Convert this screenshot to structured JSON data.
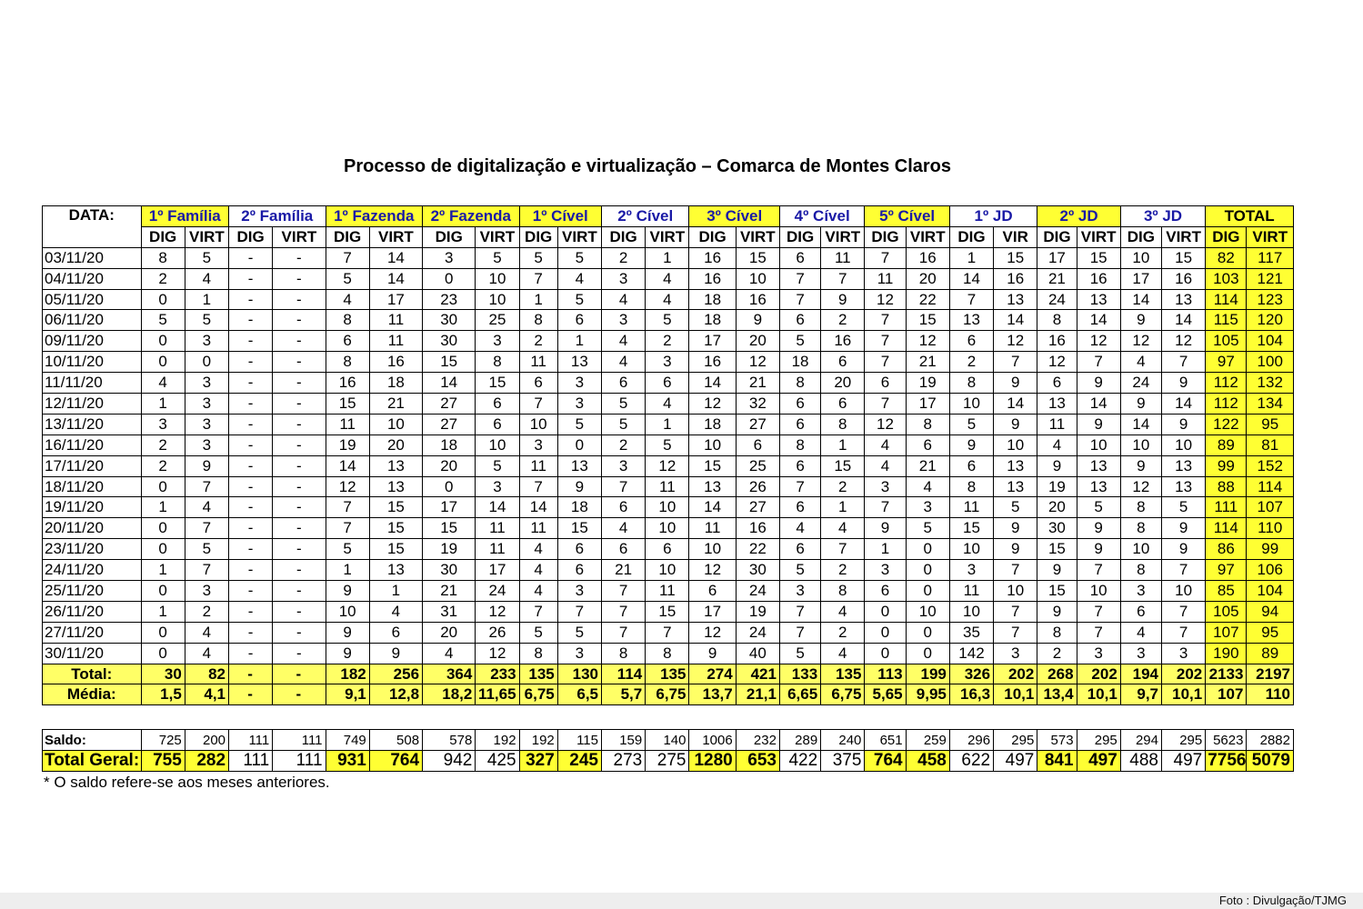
{
  "title": "Processo de digitalização e virtualização – Comarca de Montes Claros",
  "header": {
    "date_label": "DATA:",
    "groups": [
      "1º Família",
      "2º Família",
      "1º Fazenda",
      "2º Fazenda",
      "1º Cível",
      "2º Cível",
      "3º Cível",
      "4º Cível",
      "5º Cível",
      "1º JD",
      "2º JD",
      "3º JD",
      "TOTAL"
    ],
    "subheaders": [
      "DIG",
      "VIRT",
      "DIG",
      "VIRT",
      "DIG",
      "VIRT",
      "DIG",
      "VIRT",
      "DIG",
      "VIRT",
      "DIG",
      "VIRT",
      "DIG",
      "VIRT",
      "DIG",
      "VIRT",
      "DIG",
      "VIRT",
      "DIG",
      "VIR",
      "DIG",
      "VIRT",
      "DIG",
      "VIRT",
      "DIG",
      "VIRT"
    ]
  },
  "rows": [
    {
      "date": "03/11/20",
      "values": [
        "8",
        "5",
        "-",
        "-",
        "7",
        "14",
        "3",
        "5",
        "5",
        "5",
        "2",
        "1",
        "16",
        "15",
        "6",
        "11",
        "7",
        "16",
        "1",
        "15",
        "17",
        "15",
        "10",
        "15",
        "82",
        "117"
      ]
    },
    {
      "date": "04/11/20",
      "values": [
        "2",
        "4",
        "-",
        "-",
        "5",
        "14",
        "0",
        "10",
        "7",
        "4",
        "3",
        "4",
        "16",
        "10",
        "7",
        "7",
        "11",
        "20",
        "14",
        "16",
        "21",
        "16",
        "17",
        "16",
        "103",
        "121"
      ]
    },
    {
      "date": "05/11/20",
      "values": [
        "0",
        "1",
        "-",
        "-",
        "4",
        "17",
        "23",
        "10",
        "1",
        "5",
        "4",
        "4",
        "18",
        "16",
        "7",
        "9",
        "12",
        "22",
        "7",
        "13",
        "24",
        "13",
        "14",
        "13",
        "114",
        "123"
      ]
    },
    {
      "date": "06/11/20",
      "values": [
        "5",
        "5",
        "-",
        "-",
        "8",
        "11",
        "30",
        "25",
        "8",
        "6",
        "3",
        "5",
        "18",
        "9",
        "6",
        "2",
        "7",
        "15",
        "13",
        "14",
        "8",
        "14",
        "9",
        "14",
        "115",
        "120"
      ]
    },
    {
      "date": "09/11/20",
      "values": [
        "0",
        "3",
        "-",
        "-",
        "6",
        "11",
        "30",
        "3",
        "2",
        "1",
        "4",
        "2",
        "17",
        "20",
        "5",
        "16",
        "7",
        "12",
        "6",
        "12",
        "16",
        "12",
        "12",
        "12",
        "105",
        "104"
      ]
    },
    {
      "date": "10/11/20",
      "values": [
        "0",
        "0",
        "-",
        "-",
        "8",
        "16",
        "15",
        "8",
        "11",
        "13",
        "4",
        "3",
        "16",
        "12",
        "18",
        "6",
        "7",
        "21",
        "2",
        "7",
        "12",
        "7",
        "4",
        "7",
        "97",
        "100"
      ]
    },
    {
      "date": "11/11/20",
      "values": [
        "4",
        "3",
        "-",
        "-",
        "16",
        "18",
        "14",
        "15",
        "6",
        "3",
        "6",
        "6",
        "14",
        "21",
        "8",
        "20",
        "6",
        "19",
        "8",
        "9",
        "6",
        "9",
        "24",
        "9",
        "112",
        "132"
      ]
    },
    {
      "date": "12/11/20",
      "values": [
        "1",
        "3",
        "-",
        "-",
        "15",
        "21",
        "27",
        "6",
        "7",
        "3",
        "5",
        "4",
        "12",
        "32",
        "6",
        "6",
        "7",
        "17",
        "10",
        "14",
        "13",
        "14",
        "9",
        "14",
        "112",
        "134"
      ]
    },
    {
      "date": "13/11/20",
      "values": [
        "3",
        "3",
        "-",
        "-",
        "11",
        "10",
        "27",
        "6",
        "10",
        "5",
        "5",
        "1",
        "18",
        "27",
        "6",
        "8",
        "12",
        "8",
        "5",
        "9",
        "11",
        "9",
        "14",
        "9",
        "122",
        "95"
      ]
    },
    {
      "date": "16/11/20",
      "values": [
        "2",
        "3",
        "-",
        "-",
        "19",
        "20",
        "18",
        "10",
        "3",
        "0",
        "2",
        "5",
        "10",
        "6",
        "8",
        "1",
        "4",
        "6",
        "9",
        "10",
        "4",
        "10",
        "10",
        "10",
        "89",
        "81"
      ]
    },
    {
      "date": "17/11/20",
      "values": [
        "2",
        "9",
        "-",
        "-",
        "14",
        "13",
        "20",
        "5",
        "11",
        "13",
        "3",
        "12",
        "15",
        "25",
        "6",
        "15",
        "4",
        "21",
        "6",
        "13",
        "9",
        "13",
        "9",
        "13",
        "99",
        "152"
      ]
    },
    {
      "date": "18/11/20",
      "values": [
        "0",
        "7",
        "-",
        "-",
        "12",
        "13",
        "0",
        "3",
        "7",
        "9",
        "7",
        "11",
        "13",
        "26",
        "7",
        "2",
        "3",
        "4",
        "8",
        "13",
        "19",
        "13",
        "12",
        "13",
        "88",
        "114"
      ]
    },
    {
      "date": "19/11/20",
      "values": [
        "1",
        "4",
        "-",
        "-",
        "7",
        "15",
        "17",
        "14",
        "14",
        "18",
        "6",
        "10",
        "14",
        "27",
        "6",
        "1",
        "7",
        "3",
        "11",
        "5",
        "20",
        "5",
        "8",
        "5",
        "111",
        "107"
      ]
    },
    {
      "date": "20/11/20",
      "values": [
        "0",
        "7",
        "-",
        "-",
        "7",
        "15",
        "15",
        "11",
        "11",
        "15",
        "4",
        "10",
        "11",
        "16",
        "4",
        "4",
        "9",
        "5",
        "15",
        "9",
        "30",
        "9",
        "8",
        "9",
        "114",
        "110"
      ]
    },
    {
      "date": "23/11/20",
      "values": [
        "0",
        "5",
        "-",
        "-",
        "5",
        "15",
        "19",
        "11",
        "4",
        "6",
        "6",
        "6",
        "10",
        "22",
        "6",
        "7",
        "1",
        "0",
        "10",
        "9",
        "15",
        "9",
        "10",
        "9",
        "86",
        "99"
      ]
    },
    {
      "date": "24/11/20",
      "values": [
        "1",
        "7",
        "-",
        "-",
        "1",
        "13",
        "30",
        "17",
        "4",
        "6",
        "21",
        "10",
        "12",
        "30",
        "5",
        "2",
        "3",
        "0",
        "3",
        "7",
        "9",
        "7",
        "8",
        "7",
        "97",
        "106"
      ]
    },
    {
      "date": "25/11/20",
      "values": [
        "0",
        "3",
        "-",
        "-",
        "9",
        "1",
        "21",
        "24",
        "4",
        "3",
        "7",
        "11",
        "6",
        "24",
        "3",
        "8",
        "6",
        "0",
        "11",
        "10",
        "15",
        "10",
        "3",
        "10",
        "85",
        "104"
      ]
    },
    {
      "date": "26/11/20",
      "values": [
        "1",
        "2",
        "-",
        "-",
        "10",
        "4",
        "31",
        "12",
        "7",
        "7",
        "7",
        "15",
        "17",
        "19",
        "7",
        "4",
        "0",
        "10",
        "10",
        "7",
        "9",
        "7",
        "6",
        "7",
        "105",
        "94"
      ]
    },
    {
      "date": "27/11/20",
      "values": [
        "0",
        "4",
        "-",
        "-",
        "9",
        "6",
        "20",
        "26",
        "5",
        "5",
        "7",
        "7",
        "12",
        "24",
        "7",
        "2",
        "0",
        "0",
        "35",
        "7",
        "8",
        "7",
        "4",
        "7",
        "107",
        "95"
      ]
    },
    {
      "date": "30/11/20",
      "values": [
        "0",
        "4",
        "-",
        "-",
        "9",
        "9",
        "4",
        "12",
        "8",
        "3",
        "8",
        "8",
        "9",
        "40",
        "5",
        "4",
        "0",
        "0",
        "142",
        "3",
        "2",
        "3",
        "3",
        "3",
        "190",
        "89"
      ]
    }
  ],
  "total": {
    "label": "Total:",
    "values": [
      "30",
      "82",
      "-",
      "-",
      "182",
      "256",
      "364",
      "233",
      "135",
      "130",
      "114",
      "135",
      "274",
      "421",
      "133",
      "135",
      "113",
      "199",
      "326",
      "202",
      "268",
      "202",
      "194",
      "202",
      "2133",
      "2197"
    ]
  },
  "media": {
    "label": "Média:",
    "values": [
      "1,5",
      "4,1",
      "-",
      "-",
      "9,1",
      "12,8",
      "18,2",
      "11,65",
      "6,75",
      "6,5",
      "5,7",
      "6,75",
      "13,7",
      "21,1",
      "6,65",
      "6,75",
      "5,65",
      "9,95",
      "16,3",
      "10,1",
      "13,4",
      "10,1",
      "9,7",
      "10,1",
      "107",
      "110"
    ]
  },
  "saldo": {
    "label": "Saldo:",
    "values": [
      "725",
      "200",
      "111",
      "111",
      "749",
      "508",
      "578",
      "192",
      "192",
      "115",
      "159",
      "140",
      "1006",
      "232",
      "289",
      "240",
      "651",
      "259",
      "296",
      "295",
      "573",
      "295",
      "294",
      "295",
      "5623",
      "2882"
    ]
  },
  "total_geral": {
    "label": "Total Geral:",
    "values": [
      "755",
      "282",
      "111",
      "111",
      "931",
      "764",
      "942",
      "425",
      "327",
      "245",
      "273",
      "275",
      "1280",
      "653",
      "422",
      "375",
      "764",
      "458",
      "622",
      "497",
      "841",
      "497",
      "488",
      "497",
      "7756",
      "5079"
    ]
  },
  "footnote": "* O saldo refere-se aos meses anteriores.",
  "credit": "Foto : Divulgação/TJMG",
  "colors": {
    "highlight": "#ffff33",
    "header_text": "#1a1aa6"
  }
}
